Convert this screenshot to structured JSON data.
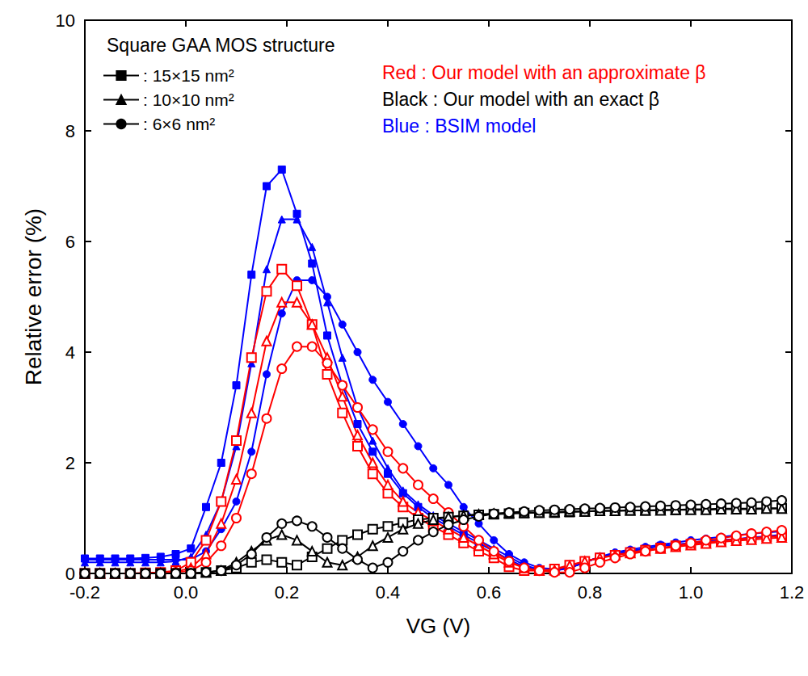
{
  "chart_data": {
    "type": "line",
    "x_label": "VG (V)",
    "y_label": "Relative error (%)",
    "annotations": [
      {
        "text": "Square GAA MOS structure",
        "color": "#000000"
      },
      {
        "text": "Red : Our model with an approximate β",
        "color": "#ff0000"
      },
      {
        "text": "Black : Our model with an exact β",
        "color": "#000000"
      },
      {
        "text": "Blue : BSIM model",
        "color": "#0000ff"
      }
    ],
    "legend": "upper left",
    "grid": false,
    "xlim": [
      -0.2,
      1.2
    ],
    "xticks": [
      -0.2,
      {
        "value": 0,
        "label": "0.0"
      },
      0.2,
      0.4,
      0.6,
      0.8,
      {
        "value": 1,
        "label": "1.0"
      },
      1.2
    ],
    "ylim": [
      0,
      10
    ],
    "yticks": [
      0,
      2,
      4,
      6,
      8,
      10
    ],
    "x": [
      -0.2,
      -0.17,
      -0.14,
      -0.11,
      -0.08,
      -0.05,
      -0.02,
      0.01,
      0.04,
      0.07,
      0.1,
      0.13,
      0.16,
      0.19,
      0.22,
      0.25,
      0.28,
      0.31,
      0.34,
      0.37,
      0.4,
      0.43,
      0.46,
      0.49,
      0.52,
      0.55,
      0.58,
      0.61,
      0.64,
      0.67,
      0.7,
      0.73,
      0.76,
      0.79,
      0.82,
      0.85,
      0.88,
      0.91,
      0.94,
      0.97,
      1.0,
      1.03,
      1.06,
      1.09,
      1.12,
      1.15,
      1.18
    ],
    "series": [
      {
        "name": ": 15×15 nm²",
        "color": "#0000ff",
        "marker": "square",
        "values": [
          0.27,
          0.27,
          0.27,
          0.27,
          0.28,
          0.3,
          0.35,
          0.45,
          1.2,
          2.0,
          3.4,
          5.4,
          7.0,
          7.3,
          6.5,
          5.6,
          4.3,
          3.4,
          2.7,
          2.2,
          1.8,
          1.45,
          1.2,
          1.0,
          0.85,
          0.7,
          0.55,
          0.4,
          0.25,
          0.12,
          0.05,
          0.05,
          0.1,
          0.2,
          0.3,
          0.35,
          0.4,
          0.45,
          0.5,
          0.52,
          0.55,
          0.58,
          0.6,
          0.62,
          0.65,
          0.67,
          0.7
        ]
      },
      {
        "name": ": 10×10 nm²",
        "color": "#0000ff",
        "marker": "triangle",
        "values": [
          0.2,
          0.2,
          0.2,
          0.2,
          0.2,
          0.2,
          0.22,
          0.3,
          0.7,
          1.3,
          2.3,
          3.8,
          5.5,
          6.4,
          6.4,
          5.9,
          4.9,
          3.9,
          3.0,
          2.4,
          1.9,
          1.5,
          1.25,
          1.05,
          0.9,
          0.75,
          0.6,
          0.45,
          0.3,
          0.15,
          0.07,
          0.05,
          0.1,
          0.2,
          0.3,
          0.35,
          0.4,
          0.45,
          0.5,
          0.52,
          0.55,
          0.58,
          0.6,
          0.62,
          0.64,
          0.66,
          0.68
        ]
      },
      {
        "name": ": 6×6 nm²",
        "color": "#0000ff",
        "marker": "circle",
        "values": [
          0.25,
          0.25,
          0.25,
          0.25,
          0.25,
          0.25,
          0.25,
          0.25,
          0.4,
          0.8,
          1.3,
          2.2,
          3.6,
          4.7,
          5.3,
          5.3,
          5.0,
          4.5,
          4.0,
          3.5,
          3.1,
          2.7,
          2.3,
          1.9,
          1.6,
          1.2,
          0.9,
          0.6,
          0.35,
          0.2,
          0.1,
          0.08,
          0.1,
          0.2,
          0.3,
          0.38,
          0.43,
          0.48,
          0.52,
          0.56,
          0.6,
          0.63,
          0.66,
          0.69,
          0.72,
          0.74,
          0.76
        ]
      },
      {
        "name": ": 15×15 nm²",
        "color": "#ff0000",
        "marker": "square-open",
        "values": [
          0,
          0,
          0,
          0,
          0.01,
          0.02,
          0.05,
          0.2,
          0.6,
          1.3,
          2.4,
          3.9,
          5.1,
          5.5,
          5.2,
          4.5,
          3.6,
          2.9,
          2.3,
          1.8,
          1.45,
          1.2,
          1.0,
          0.85,
          0.7,
          0.55,
          0.4,
          0.28,
          0.12,
          0.05,
          0.05,
          0.08,
          0.15,
          0.22,
          0.28,
          0.33,
          0.38,
          0.42,
          0.46,
          0.5,
          0.53,
          0.56,
          0.59,
          0.62,
          0.64,
          0.66,
          0.68
        ]
      },
      {
        "name": ": 10×10 nm²",
        "color": "#ff0000",
        "marker": "triangle-open",
        "values": [
          0,
          0,
          0,
          0,
          0,
          0.01,
          0.03,
          0.1,
          0.35,
          0.9,
          1.7,
          2.9,
          4.2,
          4.9,
          4.9,
          4.5,
          3.9,
          3.2,
          2.5,
          2.0,
          1.6,
          1.3,
          1.1,
          0.95,
          0.8,
          0.65,
          0.5,
          0.35,
          0.2,
          0.1,
          0.05,
          0.06,
          0.14,
          0.22,
          0.28,
          0.33,
          0.37,
          0.41,
          0.45,
          0.48,
          0.51,
          0.54,
          0.57,
          0.59,
          0.61,
          0.63,
          0.65
        ]
      },
      {
        "name": ": 6×6 nm²",
        "color": "#ff0000",
        "marker": "circle-open",
        "values": [
          0,
          0,
          0,
          0,
          0,
          0,
          0.02,
          0.05,
          0.2,
          0.5,
          1.0,
          1.8,
          2.8,
          3.7,
          4.1,
          4.1,
          3.8,
          3.4,
          3.0,
          2.6,
          2.2,
          1.9,
          1.6,
          1.35,
          1.1,
          0.85,
          0.6,
          0.4,
          0.22,
          0.1,
          0.05,
          0.02,
          0.02,
          0.1,
          0.2,
          0.28,
          0.35,
          0.4,
          0.45,
          0.5,
          0.55,
          0.6,
          0.64,
          0.68,
          0.72,
          0.75,
          0.78
        ]
      },
      {
        "name": ": 15×15 nm²",
        "color": "#000000",
        "marker": "square-open",
        "values": [
          0,
          0,
          0,
          0,
          0,
          0,
          0,
          0,
          0.02,
          0.05,
          0.1,
          0.2,
          0.25,
          0.2,
          0.15,
          0.3,
          0.45,
          0.6,
          0.7,
          0.8,
          0.85,
          0.92,
          0.97,
          1.0,
          1.02,
          1.04,
          1.06,
          1.07,
          1.08,
          1.09,
          1.1,
          1.1,
          1.11,
          1.12,
          1.13,
          1.13,
          1.14,
          1.14,
          1.15,
          1.15,
          1.16,
          1.16,
          1.17,
          1.17,
          1.17,
          1.18,
          1.18
        ]
      },
      {
        "name": ": 10×10 nm²",
        "color": "#000000",
        "marker": "triangle-open",
        "values": [
          0,
          0,
          0,
          0,
          0,
          0,
          0,
          0,
          0.02,
          0.05,
          0.2,
          0.4,
          0.6,
          0.7,
          0.6,
          0.4,
          0.2,
          0.15,
          0.3,
          0.5,
          0.65,
          0.8,
          0.9,
          0.97,
          1.02,
          1.05,
          1.07,
          1.08,
          1.09,
          1.1,
          1.1,
          1.11,
          1.12,
          1.12,
          1.13,
          1.13,
          1.14,
          1.14,
          1.14,
          1.15,
          1.15,
          1.15,
          1.16,
          1.16,
          1.16,
          1.17,
          1.17
        ]
      },
      {
        "name": ": 6×6 nm²",
        "color": "#000000",
        "marker": "circle-open",
        "values": [
          0,
          0,
          0,
          0,
          0,
          0,
          0,
          0,
          0.02,
          0.05,
          0.15,
          0.35,
          0.65,
          0.9,
          0.95,
          0.85,
          0.65,
          0.45,
          0.25,
          0.1,
          0.2,
          0.4,
          0.6,
          0.75,
          0.88,
          0.97,
          1.03,
          1.08,
          1.1,
          1.12,
          1.14,
          1.15,
          1.16,
          1.17,
          1.18,
          1.19,
          1.2,
          1.21,
          1.22,
          1.23,
          1.24,
          1.25,
          1.26,
          1.27,
          1.28,
          1.3,
          1.32
        ]
      }
    ]
  }
}
